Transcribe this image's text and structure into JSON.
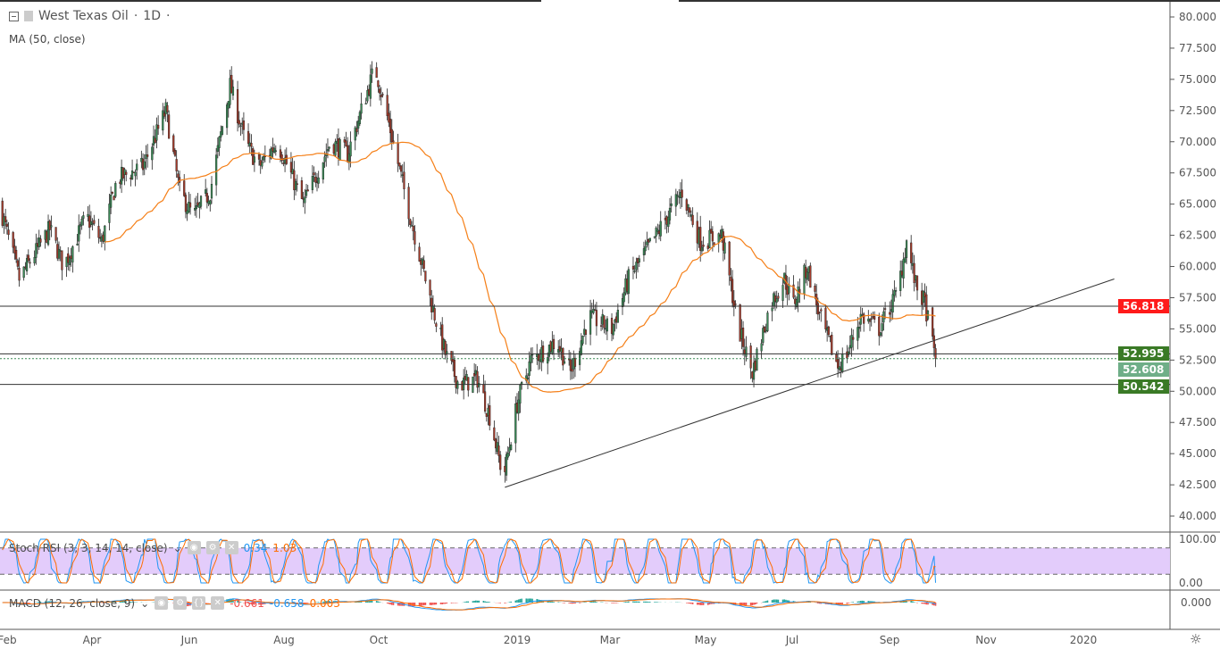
{
  "header": {
    "symbol": "West Texas Oil",
    "interval": "1D",
    "separator": "·"
  },
  "indicators": {
    "ma": {
      "label": "MA (50, close)",
      "color": "#f57f17"
    },
    "stoch_rsi": {
      "label": "Stoch RSI (3, 3, 14, 14, close)",
      "k_value": "0.34",
      "d_value": "1.03",
      "k_color": "#2196f3",
      "d_color": "#ff6d00",
      "upper": "80",
      "lower": "20"
    },
    "macd": {
      "label": "MACD (12, 26, close, 9)",
      "hist_value": "-0.661",
      "macd_value": "-0.658",
      "signal_value": "0.003"
    }
  },
  "price_axis": {
    "ticks": [
      "80.000",
      "77.500",
      "75.000",
      "72.500",
      "70.000",
      "67.500",
      "65.000",
      "62.500",
      "60.000",
      "57.500",
      "55.000",
      "52.500",
      "50.000",
      "47.500",
      "45.000",
      "42.500",
      "40.000"
    ]
  },
  "stoch_axis": {
    "ticks": [
      "100.00",
      "0.00"
    ]
  },
  "macd_axis": {
    "ticks": [
      "0.000"
    ]
  },
  "time_axis": {
    "labels": [
      "Feb",
      "Apr",
      "Jun",
      "Aug",
      "Oct",
      "2019",
      "Mar",
      "May",
      "Jul",
      "Sep",
      "Nov",
      "2020"
    ]
  },
  "price_tags": [
    {
      "value": "56.818",
      "color": "#ff1a1a"
    },
    {
      "value": "52.995",
      "color": "#3a7a26"
    },
    {
      "value": "52.608",
      "color": "#6fae88"
    },
    {
      "value": "50.542",
      "color": "#3a7a26"
    }
  ],
  "colors": {
    "up": "#3a8a56",
    "down": "#a33a2a",
    "hline": "#333333",
    "stoch_band": "#e3ccfb"
  },
  "chart_data": {
    "type": "candlestick",
    "ylim": [
      40,
      80
    ],
    "x_range": [
      "2018-01-27",
      "2020-02-10"
    ],
    "key_closes": [
      [
        "2018-01-27",
        65
      ],
      [
        "2018-02-09",
        59
      ],
      [
        "2018-03-01",
        63
      ],
      [
        "2018-03-10",
        60
      ],
      [
        "2018-03-25",
        64
      ],
      [
        "2018-04-04",
        62
      ],
      [
        "2018-04-14",
        67
      ],
      [
        "2018-05-01",
        68
      ],
      [
        "2018-05-16",
        72.5
      ],
      [
        "2018-05-25",
        66
      ],
      [
        "2018-06-03",
        64
      ],
      [
        "2018-06-14",
        66
      ],
      [
        "2018-06-27",
        74.5
      ],
      [
        "2018-07-07",
        70
      ],
      [
        "2018-07-16",
        68
      ],
      [
        "2018-07-28",
        70
      ],
      [
        "2018-08-14",
        65
      ],
      [
        "2018-09-01",
        70
      ],
      [
        "2018-09-12",
        69
      ],
      [
        "2018-09-30",
        76
      ],
      [
        "2018-10-08",
        72
      ],
      [
        "2018-10-23",
        64
      ],
      [
        "2018-11-06",
        57
      ],
      [
        "2018-11-15",
        53
      ],
      [
        "2018-11-24",
        50.5
      ],
      [
        "2018-12-06",
        51
      ],
      [
        "2018-12-14",
        48
      ],
      [
        "2018-12-23",
        43
      ],
      [
        "2019-01-01",
        49
      ],
      [
        "2019-01-10",
        52.5
      ],
      [
        "2019-01-27",
        54
      ],
      [
        "2019-02-05",
        51.5
      ],
      [
        "2019-02-17",
        56
      ],
      [
        "2019-03-04",
        55
      ],
      [
        "2019-03-15",
        59
      ],
      [
        "2019-04-02",
        62.5
      ],
      [
        "2019-04-19",
        66
      ],
      [
        "2019-05-01",
        62
      ],
      [
        "2019-05-15",
        62.5
      ],
      [
        "2019-05-26",
        55
      ],
      [
        "2019-06-04",
        51.5
      ],
      [
        "2019-06-16",
        57
      ],
      [
        "2019-06-25",
        59
      ],
      [
        "2019-07-01",
        57
      ],
      [
        "2019-07-10",
        60
      ],
      [
        "2019-07-18",
        56
      ],
      [
        "2019-07-30",
        52
      ],
      [
        "2019-08-05",
        53
      ],
      [
        "2019-08-14",
        56
      ],
      [
        "2019-08-26",
        55
      ],
      [
        "2019-09-07",
        58
      ],
      [
        "2019-09-13",
        62
      ],
      [
        "2019-09-19",
        58.5
      ],
      [
        "2019-09-25",
        57
      ],
      [
        "2019-10-02",
        52.6
      ]
    ],
    "horizontal_lines": [
      56.818,
      52.995,
      50.542
    ],
    "dashed_line": 52.608,
    "trendline": [
      [
        "2018-12-24",
        42.3
      ],
      [
        "2020-01-27",
        59.0
      ]
    ]
  }
}
